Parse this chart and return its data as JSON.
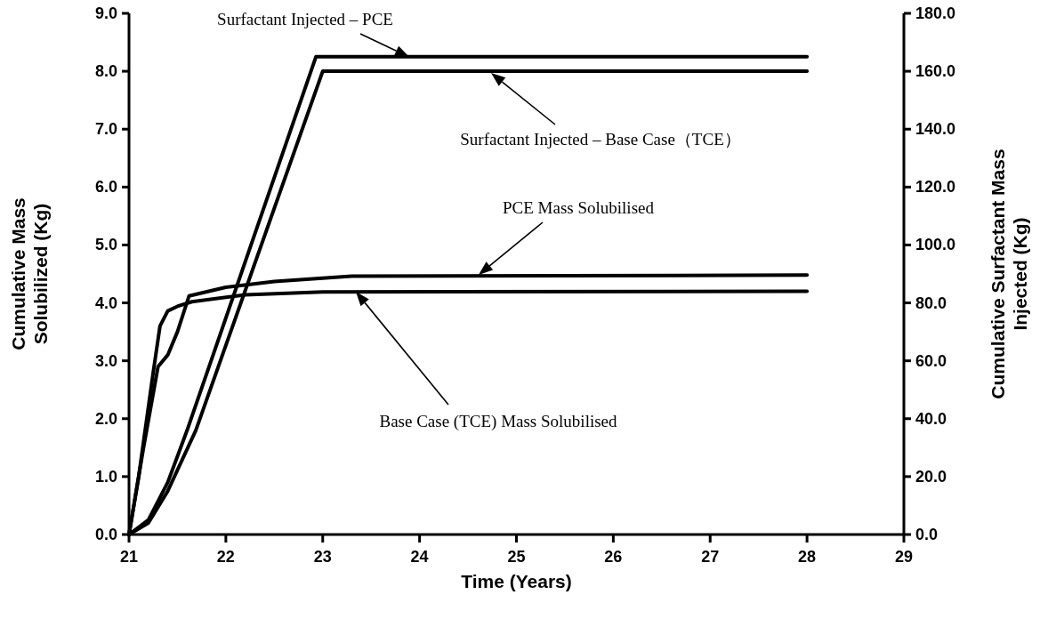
{
  "chart_data": {
    "type": "line",
    "xlabel": "Time (Years)",
    "ylabel": "Cumulative Mass Solubilized (Kg)",
    "y2label": "Cumulative Surfactant Mass Injected (Kg)",
    "xlim": [
      21,
      29
    ],
    "xticks": [
      21,
      22,
      23,
      24,
      25,
      26,
      27,
      28,
      29
    ],
    "ylim": [
      0,
      9
    ],
    "yticks": [
      {
        "value": 0,
        "label": "0.0"
      },
      {
        "value": 1,
        "label": "1.0"
      },
      {
        "value": 2,
        "label": "2.0"
      },
      {
        "value": 3,
        "label": "3.0"
      },
      {
        "value": 4,
        "label": "4.0"
      },
      {
        "value": 5,
        "label": "5.0"
      },
      {
        "value": 6,
        "label": "6.0"
      },
      {
        "value": 7,
        "label": "7.0"
      },
      {
        "value": 8,
        "label": "8.0"
      },
      {
        "value": 9,
        "label": "9.0"
      }
    ],
    "y2lim": [
      0,
      180
    ],
    "y2ticks": [
      {
        "value": 0,
        "label": "0.0"
      },
      {
        "value": 20,
        "label": "20.0"
      },
      {
        "value": 40,
        "label": "40.0"
      },
      {
        "value": 60,
        "label": "60.0"
      },
      {
        "value": 80,
        "label": "80.0"
      },
      {
        "value": 100,
        "label": "100.0"
      },
      {
        "value": 120,
        "label": "120.0"
      },
      {
        "value": 140,
        "label": "140.0"
      },
      {
        "value": 160,
        "label": "160.0"
      },
      {
        "value": 180,
        "label": "180.0"
      }
    ],
    "grid": false,
    "marker": "none",
    "line_style": "solid",
    "series": [
      {
        "color": "#000000",
        "axis": "y2",
        "x": [
          21,
          21.2,
          21.4,
          21.6,
          22.93,
          28
        ],
        "values": [
          0,
          5,
          18,
          36,
          165,
          165
        ]
      },
      {
        "color": "#000000",
        "axis": "y2",
        "x": [
          21,
          21.2,
          21.4,
          21.69,
          23.0,
          28
        ],
        "values": [
          0,
          4,
          15,
          36,
          160,
          160
        ]
      },
      {
        "color": "#000000",
        "x": [
          21,
          21.15,
          21.3,
          21.4,
          21.5,
          21.62,
          22.0,
          22.5,
          23.3,
          28
        ],
        "values": [
          0,
          1.5,
          2.9,
          3.1,
          3.5,
          4.12,
          4.27,
          4.37,
          4.46,
          4.48
        ]
      },
      {
        "color": "#000000",
        "x": [
          21,
          21.1,
          21.25,
          21.32,
          21.4,
          21.5,
          21.65,
          22.2,
          23,
          28
        ],
        "values": [
          0,
          1.0,
          2.8,
          3.6,
          3.86,
          3.94,
          4.02,
          4.14,
          4.19,
          4.2
        ]
      }
    ],
    "annotations": [
      "Surfactant Injected – PCE",
      "Surfactant Injected – Base Case（TCE）",
      "PCE Mass Solubilised",
      "Base Case (TCE) Mass Solubilised"
    ]
  }
}
